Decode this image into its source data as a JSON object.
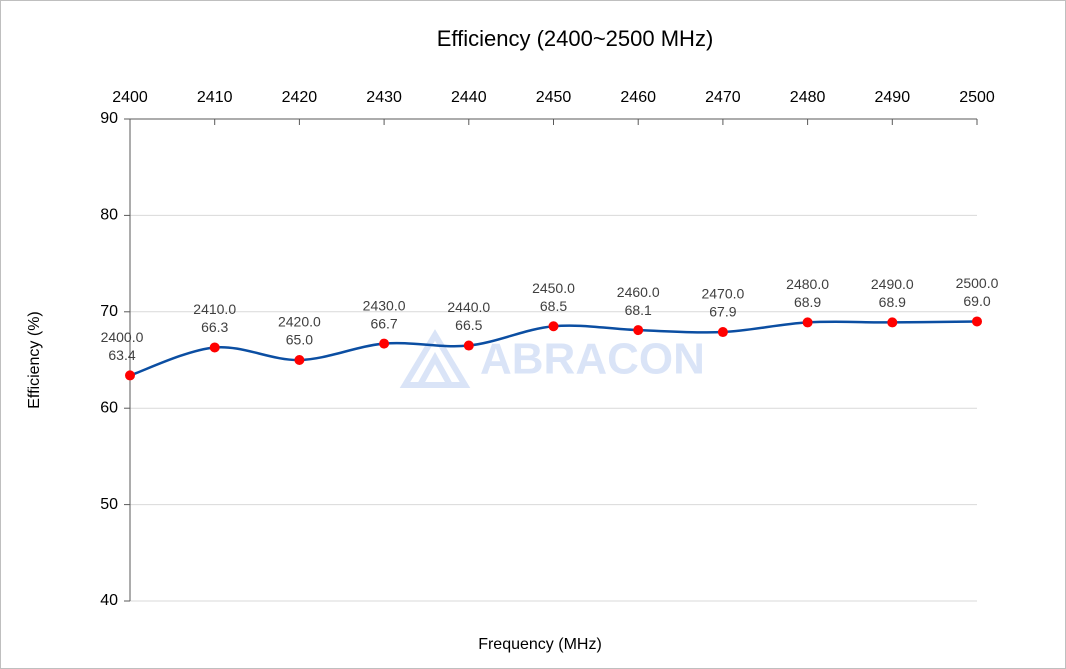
{
  "chart_data": {
    "type": "line",
    "title": "Efficiency (2400~2500 MHz)",
    "x_label": "Frequency (MHz)",
    "y_label": "Efficiency (%)",
    "watermark": "ABRACON",
    "x": [
      2400,
      2410,
      2420,
      2430,
      2440,
      2450,
      2460,
      2470,
      2480,
      2490,
      2500
    ],
    "x_value_labels": [
      "2400.0",
      "2410.0",
      "2420.0",
      "2430.0",
      "2440.0",
      "2450.0",
      "2460.0",
      "2470.0",
      "2480.0",
      "2490.0",
      "2500.0"
    ],
    "series": [
      {
        "name": "Efficiency",
        "color": "#0b4ea2",
        "marker_color": "#ff0000",
        "values": [
          63.4,
          66.3,
          65.0,
          66.7,
          66.5,
          68.5,
          68.1,
          67.9,
          68.9,
          68.9,
          69.0
        ],
        "value_labels": [
          "63.4",
          "66.3",
          "65.0",
          "66.7",
          "66.5",
          "68.5",
          "68.1",
          "67.9",
          "68.9",
          "68.9",
          "69.0"
        ]
      }
    ],
    "xlim": [
      2400,
      2500
    ],
    "xticks": [
      2400,
      2410,
      2420,
      2430,
      2440,
      2450,
      2460,
      2470,
      2480,
      2490,
      2500
    ],
    "ylim": [
      40,
      90
    ],
    "yticks": [
      40,
      50,
      60,
      70,
      80,
      90
    ],
    "grid": true
  }
}
